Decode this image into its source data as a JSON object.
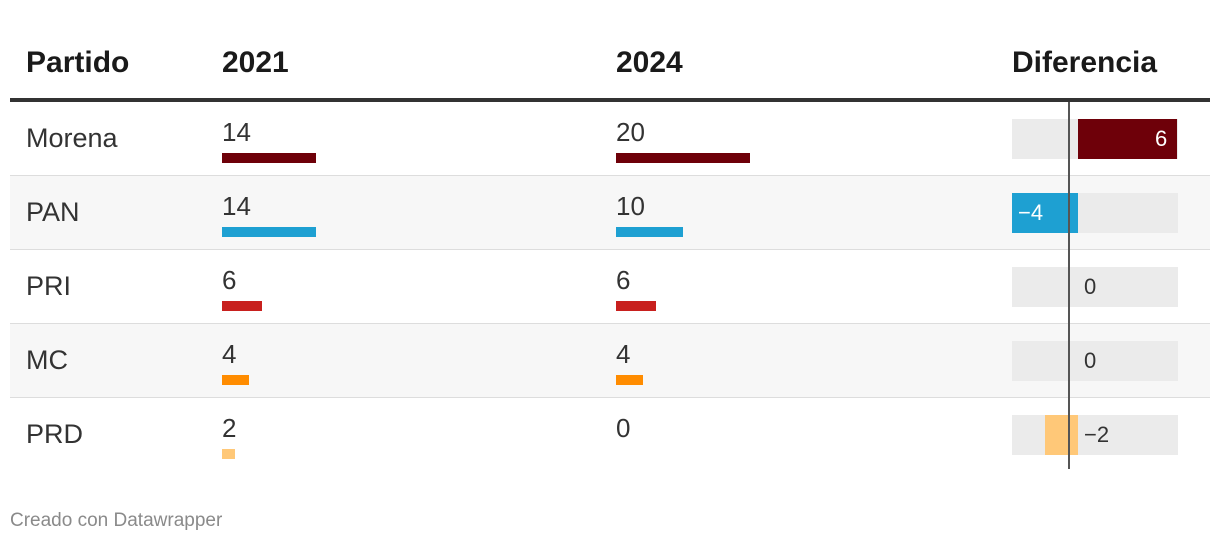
{
  "headers": {
    "party": "Partido",
    "y2021": "2021",
    "y2024": "2024",
    "diff": "Diferencia"
  },
  "credit": "Creado con Datawrapper",
  "chart_data": {
    "type": "table",
    "columns": [
      "Partido",
      "2021",
      "2024",
      "Diferencia"
    ],
    "bar_max": 20,
    "diff_range": [
      -4,
      6
    ],
    "rows": [
      {
        "party": "Morena",
        "v2021": 14,
        "v2024": 20,
        "diff": 6,
        "diff_label": "6",
        "color": "#6e0009"
      },
      {
        "party": "PAN",
        "v2021": 14,
        "v2024": 10,
        "diff": -4,
        "diff_label": "−4",
        "color": "#1ea0d2"
      },
      {
        "party": "PRI",
        "v2021": 6,
        "v2024": 6,
        "diff": 0,
        "diff_label": "0",
        "color": "#c8201e"
      },
      {
        "party": "MC",
        "v2021": 4,
        "v2024": 4,
        "diff": 0,
        "diff_label": "0",
        "color": "#ff8c00"
      },
      {
        "party": "PRD",
        "v2021": 2,
        "v2024": 0,
        "diff": -2,
        "diff_label": "−2",
        "color": "#ffc878"
      }
    ]
  }
}
